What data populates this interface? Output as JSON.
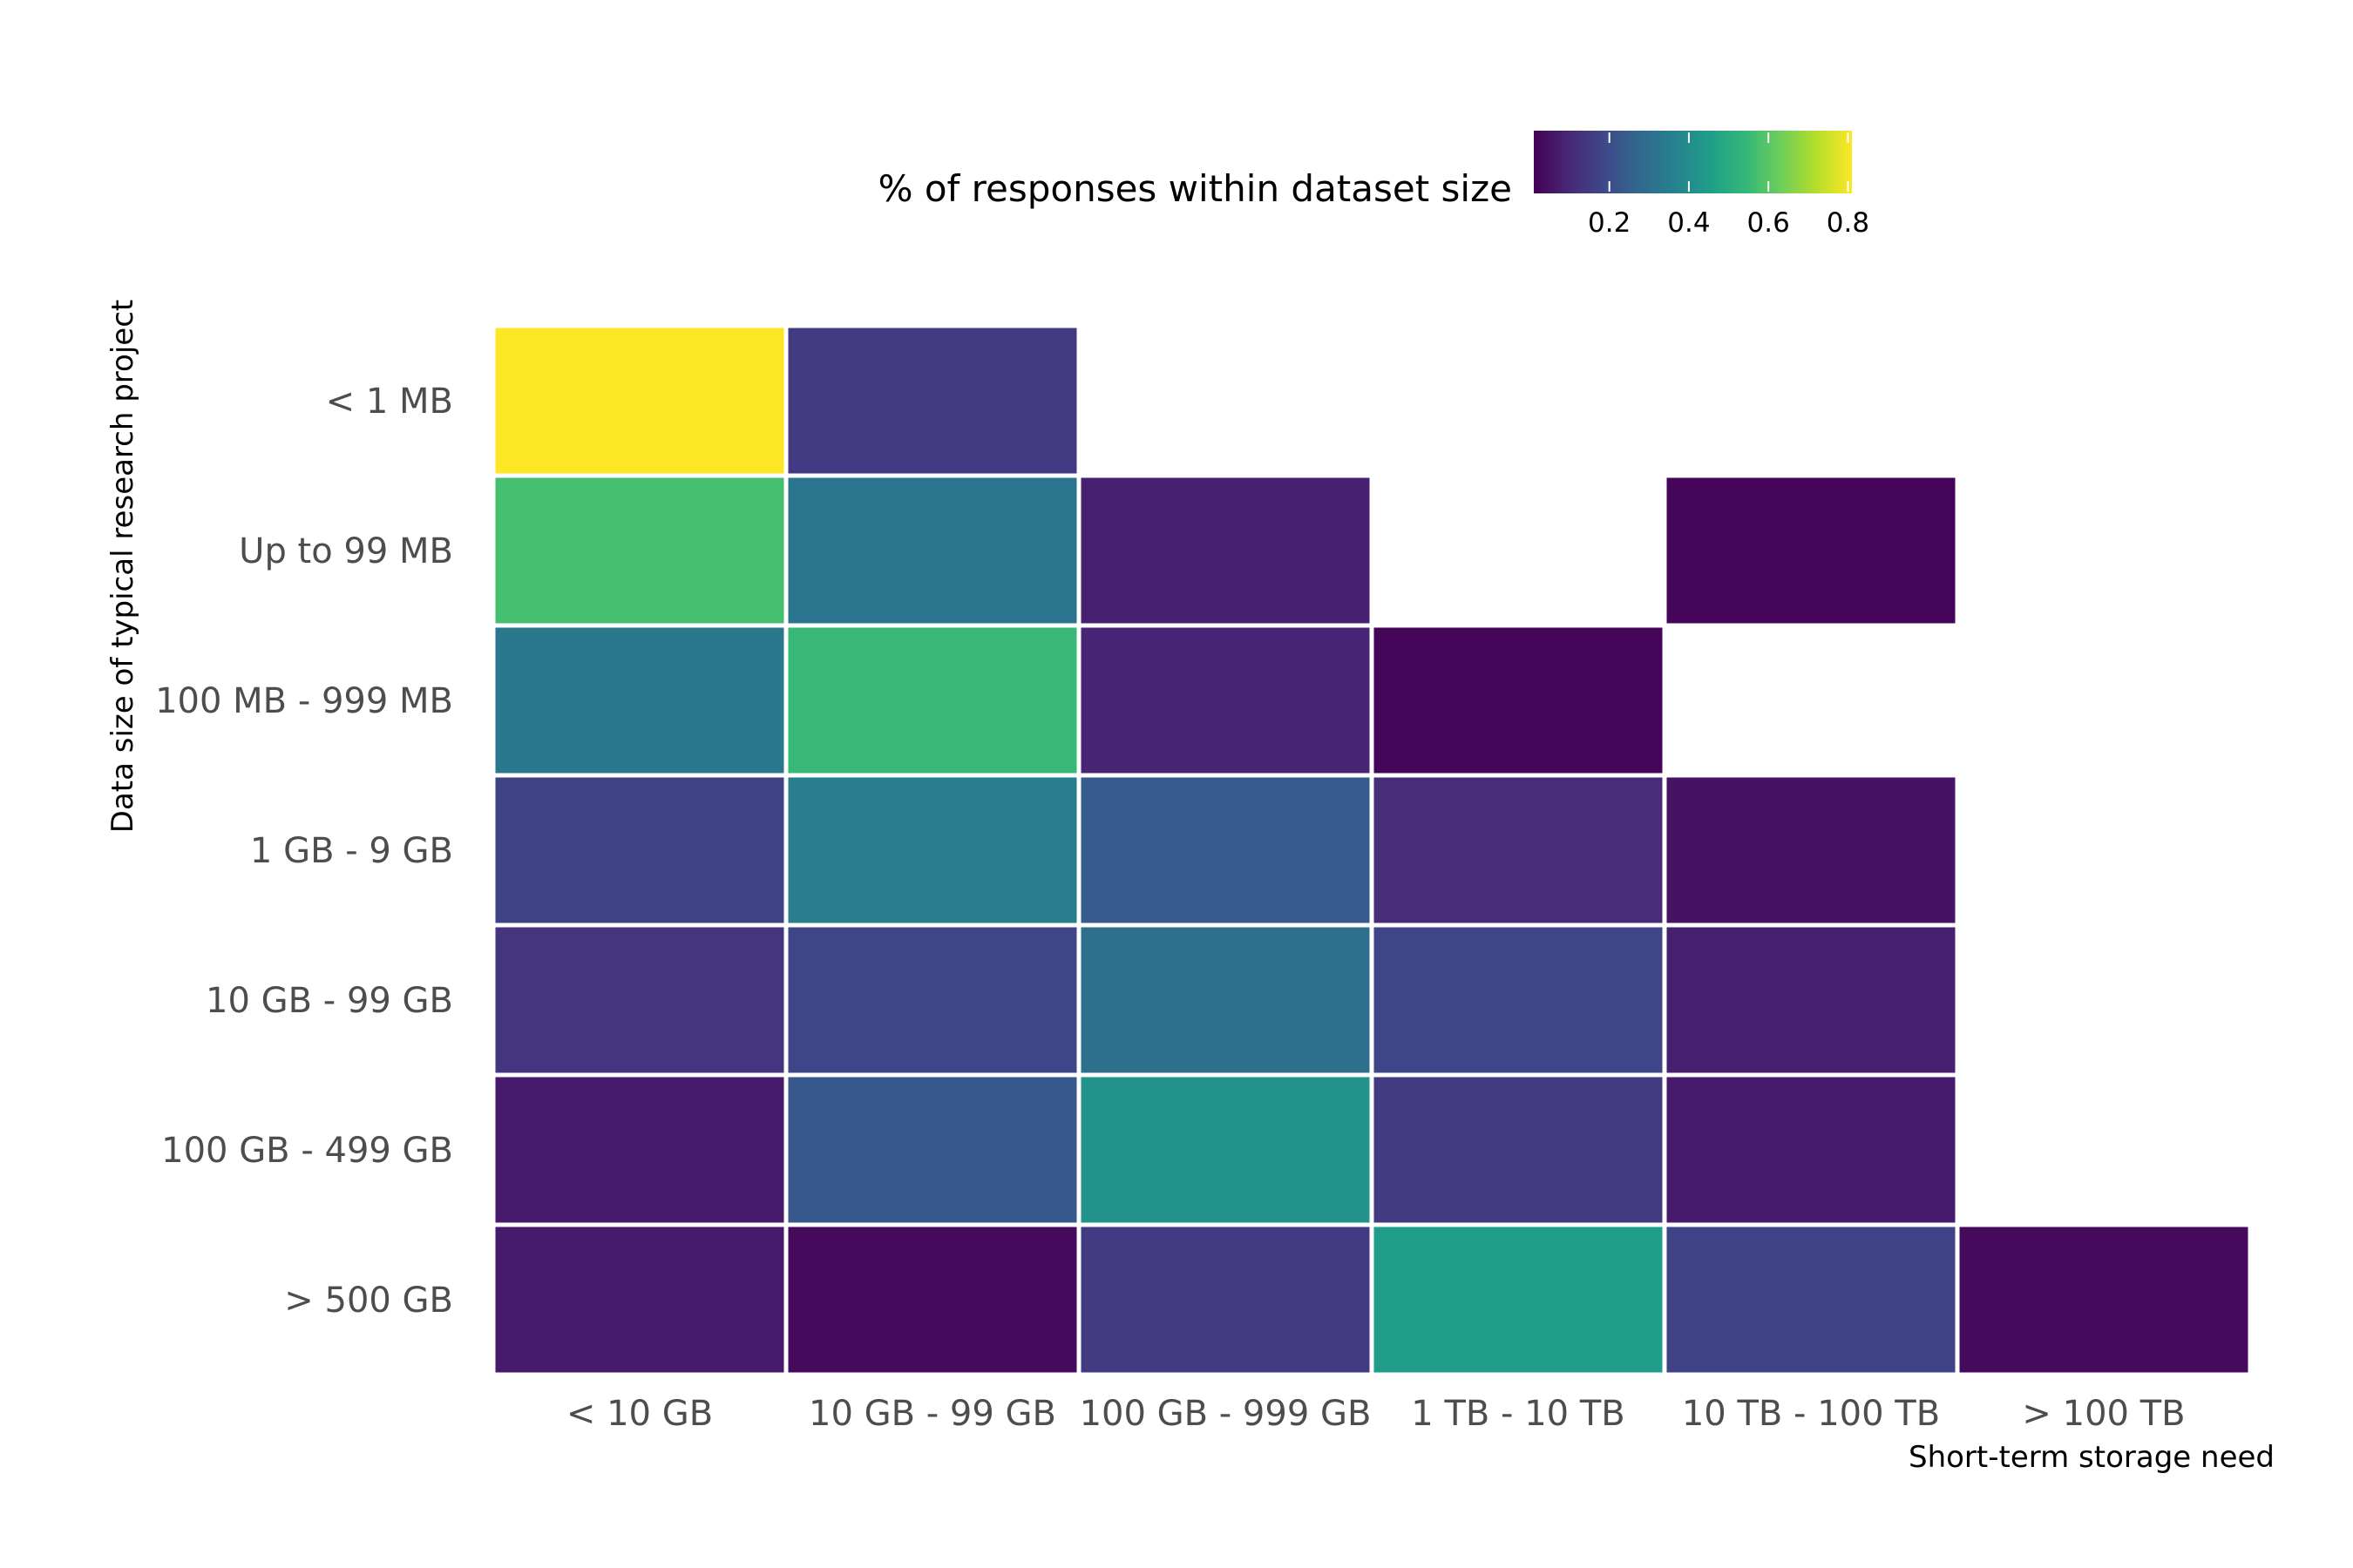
{
  "chart_data": {
    "type": "heatmap",
    "title": "",
    "xlabel": "Short-term storage need",
    "ylabel": "Data size of typical research project",
    "x_categories": [
      "< 10 GB",
      "10 GB - 99 GB",
      "100 GB - 999 GB",
      "1 TB - 10 TB",
      "10 TB - 100 TB",
      "> 100 TB"
    ],
    "y_categories": [
      "< 1 MB",
      "Up to 99 MB",
      "100 MB - 999 MB",
      "1 GB - 9 GB",
      "10 GB - 99 GB",
      "100 GB - 499 GB",
      "> 500 GB"
    ],
    "values": [
      [
        0.85,
        0.15,
        null,
        null,
        null,
        null
      ],
      [
        0.57,
        0.32,
        0.08,
        null,
        0.02,
        null
      ],
      [
        0.33,
        0.55,
        0.09,
        0.02,
        null,
        null
      ],
      [
        0.17,
        0.35,
        0.24,
        0.11,
        0.05,
        null
      ],
      [
        0.13,
        0.18,
        0.3,
        0.18,
        0.08,
        null
      ],
      [
        0.07,
        0.23,
        0.42,
        0.15,
        0.07,
        null
      ],
      [
        0.07,
        0.03,
        0.15,
        0.45,
        0.17,
        0.03
      ]
    ],
    "legend": {
      "title": "% of responses within dataset size",
      "position": "top",
      "ticks": [
        0.2,
        0.4,
        0.6,
        0.8
      ],
      "tick_labels": [
        "0.2",
        "0.4",
        "0.6",
        "0.8"
      ],
      "min": 0.01,
      "max": 0.81
    },
    "colormap": [
      "#440154",
      "#482878",
      "#3e4989",
      "#31688e",
      "#26828e",
      "#1f9e89",
      "#35b779",
      "#6ece58",
      "#b5de2b",
      "#fde725"
    ],
    "grid": false
  }
}
